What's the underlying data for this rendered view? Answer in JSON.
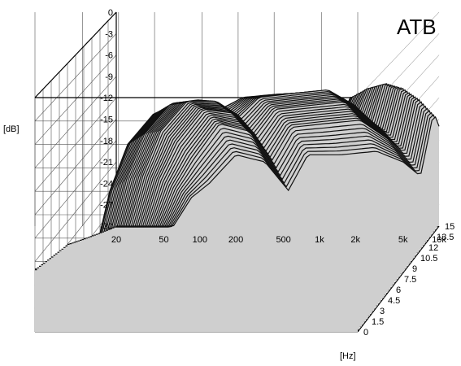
{
  "chart_data": {
    "type": "waterfall",
    "title": "ATB",
    "z_unit": "[dB]",
    "x_unit": "[Hz]",
    "x_ticks": [
      "20",
      "50",
      "100",
      "200",
      "500",
      "1k",
      "2k",
      "5k",
      "10k"
    ],
    "x_values": [
      20,
      50,
      100,
      200,
      500,
      1000,
      2000,
      5000,
      10000
    ],
    "x_scale": "log",
    "xlim": [
      20,
      10000
    ],
    "z_ticks": [
      "0",
      "-3",
      "-6",
      "-9",
      "-12",
      "-15",
      "-18",
      "-21",
      "-24",
      "-27",
      "-30"
    ],
    "zlim": [
      -30,
      0
    ],
    "t_ticks": [
      "0",
      "1.5",
      "3",
      "4.5",
      "6",
      "7.5",
      "9",
      "10.5",
      "12",
      "13.5",
      "15"
    ],
    "tlim": [
      0,
      15
    ],
    "grid": true,
    "series": [
      {
        "values": [
          [
            60,
            -22
          ],
          [
            85,
            -12
          ],
          [
            120,
            -6
          ],
          [
            200,
            -2
          ],
          [
            350,
            -1.5
          ],
          [
            550,
            -2.2
          ],
          [
            800,
            -1.2
          ],
          [
            1500,
            -0.8
          ],
          [
            3000,
            -0.6
          ],
          [
            5000,
            -1.5
          ],
          [
            7000,
            -3.5
          ],
          [
            9000,
            0.5
          ],
          [
            10000,
            -0.8
          ]
        ]
      },
      {
        "values": [
          [
            60,
            -23
          ],
          [
            85,
            -13
          ],
          [
            120,
            -7
          ],
          [
            200,
            -3
          ],
          [
            350,
            -2.5
          ],
          [
            550,
            -3.6
          ],
          [
            800,
            -2.2
          ],
          [
            1500,
            -1.8
          ],
          [
            3000,
            -1.6
          ],
          [
            5000,
            -2.8
          ],
          [
            7000,
            -5
          ],
          [
            9000,
            -0.5
          ],
          [
            10000,
            -2
          ]
        ]
      },
      {
        "values": [
          [
            60,
            -24
          ],
          [
            85,
            -15
          ],
          [
            120,
            -9
          ],
          [
            200,
            -5
          ],
          [
            350,
            -5
          ],
          [
            550,
            -7
          ],
          [
            800,
            -4.5
          ],
          [
            1500,
            -4
          ],
          [
            3000,
            -3.5
          ],
          [
            5000,
            -5.5
          ],
          [
            7000,
            -8
          ],
          [
            9000,
            -2
          ],
          [
            10000,
            -4
          ]
        ]
      },
      {
        "values": [
          [
            60,
            -26
          ],
          [
            85,
            -18
          ],
          [
            120,
            -13
          ],
          [
            200,
            -8.5
          ],
          [
            350,
            -9
          ],
          [
            550,
            -12
          ],
          [
            800,
            -8.5
          ],
          [
            1500,
            -8
          ],
          [
            3000,
            -7.5
          ],
          [
            5000,
            -10
          ],
          [
            7000,
            -12
          ],
          [
            9000,
            -5
          ],
          [
            10000,
            -7
          ]
        ]
      },
      {
        "values": [
          [
            60,
            -28
          ],
          [
            85,
            -22
          ],
          [
            120,
            -18
          ],
          [
            200,
            -13
          ],
          [
            350,
            -14
          ],
          [
            550,
            -18
          ],
          [
            800,
            -13.5
          ],
          [
            1500,
            -13
          ],
          [
            3000,
            -12.5
          ],
          [
            5000,
            -15
          ],
          [
            7000,
            -17
          ],
          [
            9000,
            -9
          ],
          [
            10000,
            -11
          ]
        ]
      },
      {
        "values": [
          [
            60,
            -30
          ],
          [
            85,
            -26
          ],
          [
            120,
            -24
          ],
          [
            200,
            -20
          ],
          [
            350,
            -21
          ],
          [
            550,
            -25
          ],
          [
            800,
            -20
          ],
          [
            1500,
            -20
          ],
          [
            3000,
            -19.5
          ],
          [
            5000,
            -21
          ],
          [
            7000,
            -23
          ],
          [
            9000,
            -14
          ],
          [
            10000,
            -16
          ]
        ]
      }
    ]
  }
}
